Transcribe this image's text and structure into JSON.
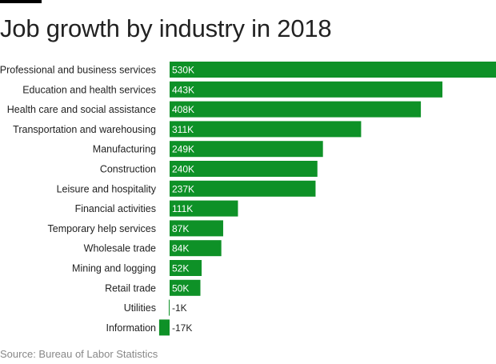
{
  "title": "Job growth by industry in 2018",
  "source": "Source: Bureau of Labor Statistics",
  "colors": {
    "bar": "#0e9127",
    "label_on_bar": "#ffffff",
    "label_outside": "#222222"
  },
  "chart_data": {
    "type": "bar",
    "orientation": "horizontal",
    "title": "Job growth by industry in 2018",
    "xlabel": "",
    "ylabel": "",
    "unit": "thousand jobs",
    "xlim": [
      -17,
      530
    ],
    "categories": [
      "Professional and business services",
      "Education and health services",
      "Health care and social assistance",
      "Transportation and warehousing",
      "Manufacturing",
      "Construction",
      "Leisure and hospitality",
      "Financial activities",
      "Temporary help services",
      "Wholesale trade",
      "Mining and logging",
      "Retail trade",
      "Utilities",
      "Information"
    ],
    "values": [
      530,
      443,
      408,
      311,
      249,
      240,
      237,
      111,
      87,
      84,
      52,
      50,
      -1,
      -17
    ],
    "value_labels": [
      "530K",
      "443K",
      "408K",
      "311K",
      "249K",
      "240K",
      "237K",
      "111K",
      "87K",
      "84K",
      "52K",
      "50K",
      "-1K",
      "-17K"
    ]
  }
}
